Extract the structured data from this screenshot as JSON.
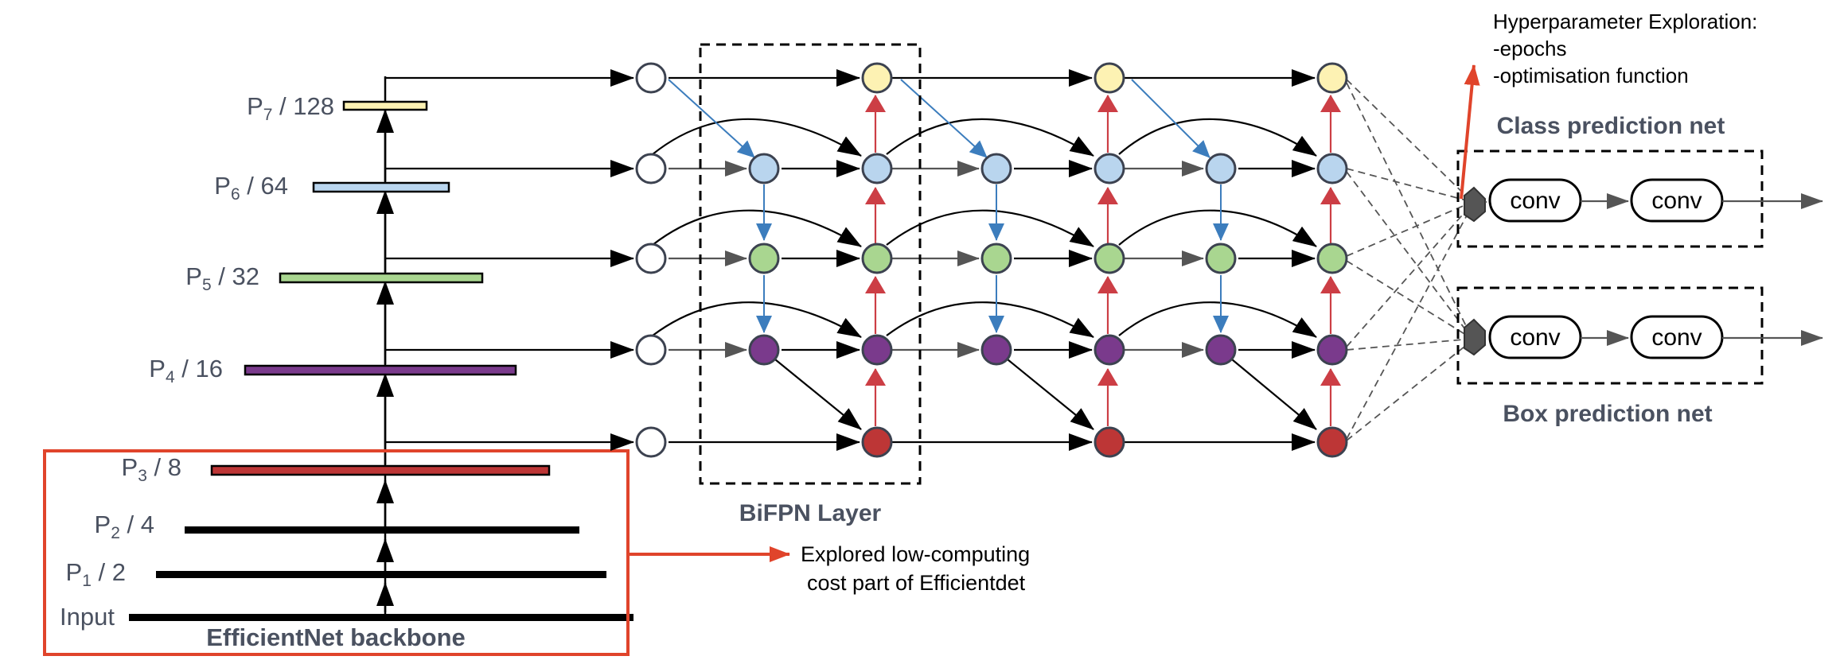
{
  "backbone": {
    "levels": [
      {
        "base": "P",
        "sub": "7",
        "tail": " / 128"
      },
      {
        "base": "P",
        "sub": "6",
        "tail": " / 64"
      },
      {
        "base": "P",
        "sub": "5",
        "tail": " / 32"
      },
      {
        "base": "P",
        "sub": "4",
        "tail": " / 16"
      },
      {
        "base": "P",
        "sub": "3",
        "tail": " / 8"
      },
      {
        "base": "P",
        "sub": "2",
        "tail": " / 4"
      },
      {
        "base": "P",
        "sub": "1",
        "tail": " / 2"
      }
    ],
    "input_label": "Input",
    "title": "EfficientNet backbone"
  },
  "bifpn": {
    "title": "BiFPN Layer"
  },
  "class_net": {
    "title": "Class prediction net",
    "conv_labels": [
      "conv",
      "conv"
    ]
  },
  "box_net": {
    "title": "Box prediction net",
    "conv_labels": [
      "conv",
      "conv"
    ]
  },
  "hyperparam": {
    "lines": [
      "Hyperparameter Exploration:",
      "-epochs",
      "-optimisation function"
    ]
  },
  "explored_note": {
    "lines": [
      "Explored low-computing",
      "cost part of Efficientdet"
    ]
  },
  "colors": {
    "p7": "#fdf2b3",
    "p6": "#b9d5ee",
    "p5": "#a9d690",
    "p4": "#7a3a8c",
    "p3": "#bd3636",
    "highlight": "#e0442b",
    "blue_edge": "#3c7dbd",
    "red_edge": "#cc3e45",
    "grey_edge": "#555555",
    "label": "#4a5160"
  }
}
